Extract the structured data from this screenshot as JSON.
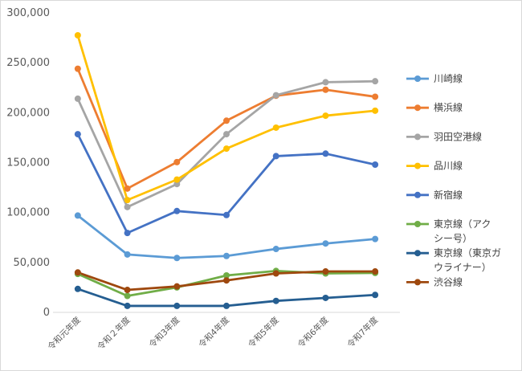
{
  "chart_data": {
    "type": "line",
    "title": "",
    "xlabel": "",
    "ylabel": "",
    "ylim": [
      0,
      300000
    ],
    "ytick_step": 50000,
    "grid": false,
    "legend_position": "right",
    "categories": [
      "令和元年度",
      "令和２年度",
      "令和3年度",
      "令和4年度",
      "令和5年度",
      "令和6年度",
      "令和7年度"
    ],
    "series": [
      {
        "name": "川崎線",
        "color": "#5b9bd5",
        "values": [
          97000,
          58000,
          54500,
          56500,
          63500,
          69000,
          73500
        ]
      },
      {
        "name": "横浜線",
        "color": "#ed7d31",
        "values": [
          244000,
          124000,
          150500,
          192000,
          217000,
          223000,
          216000
        ]
      },
      {
        "name": "羽田空港線",
        "color": "#a5a5a5",
        "values": [
          214000,
          105500,
          128500,
          178500,
          217500,
          230500,
          231500
        ]
      },
      {
        "name": "品川線",
        "color": "#ffc000",
        "values": [
          277500,
          112500,
          133000,
          164000,
          185000,
          197000,
          202000
        ]
      },
      {
        "name": "新宿線",
        "color": "#4472c4",
        "values": [
          178500,
          79500,
          101500,
          97500,
          156500,
          159000,
          148000
        ]
      },
      {
        "name": "東京線（アクシー号）",
        "color": "#70ad47",
        "values": [
          38500,
          16500,
          25000,
          37000,
          41500,
          39000,
          39500
        ]
      },
      {
        "name": "東京線（東京ガウライナー）",
        "color": "#255e91",
        "values": [
          23500,
          6500,
          6500,
          6500,
          11500,
          14500,
          17500
        ]
      },
      {
        "name": "渋谷線",
        "color": "#9e480e",
        "values": [
          40000,
          22500,
          26000,
          32000,
          39000,
          41000,
          41000
        ]
      }
    ],
    "legend_lines": [
      [
        "川崎線"
      ],
      [
        "横浜線"
      ],
      [
        "羽田空港線"
      ],
      [
        "品川線"
      ],
      [
        "新宿線"
      ],
      [
        "東京線（アク",
        "シー号）"
      ],
      [
        "東京線（東京ガ",
        "ウライナー）"
      ],
      [
        "渋谷線"
      ]
    ]
  }
}
